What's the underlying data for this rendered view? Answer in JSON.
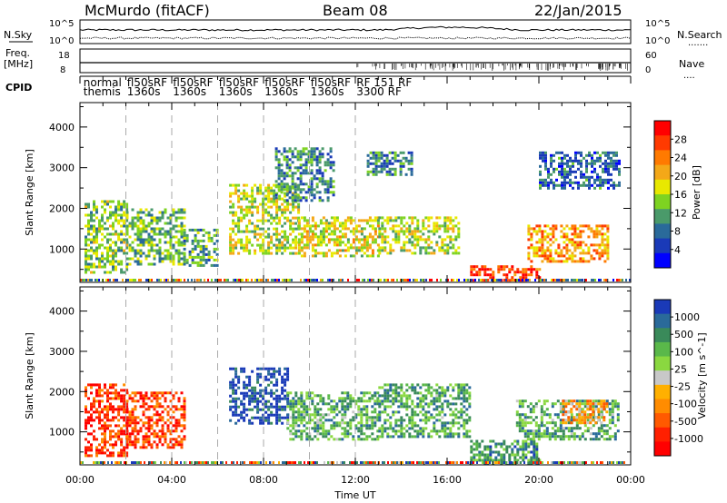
{
  "header": {
    "station": "McMurdo (fitACF)",
    "beam": "Beam 08",
    "date": "22/Jan/2015"
  },
  "top_panels": {
    "nsky_label": "N.Sky",
    "nsky_ticks": [
      "10^5",
      "10^0"
    ],
    "nsearch_label": "N.Search",
    "nsearch_ticks": [
      "10^5",
      "10^0"
    ],
    "freq_label": "Freq.",
    "freq_unit": "[MHz]",
    "freq_ticks": [
      "18",
      "8"
    ],
    "nave_label": "Nave",
    "nave_ticks": [
      "60",
      "0"
    ],
    "cpid_label": "CPID",
    "cpid_entries": [
      {
        "text": "normal",
        "row": 0,
        "hour": 0.15
      },
      {
        "text": "themis",
        "row": 1,
        "hour": 0.15
      },
      {
        "text": "fl50sRF",
        "row": 0,
        "hour": 2.05
      },
      {
        "text": "1360s",
        "row": 1,
        "hour": 2.05
      },
      {
        "text": "fl50sRF",
        "row": 0,
        "hour": 4.05
      },
      {
        "text": "1360s",
        "row": 1,
        "hour": 4.05
      },
      {
        "text": "fl50sRF",
        "row": 0,
        "hour": 6.05
      },
      {
        "text": "1360s",
        "row": 1,
        "hour": 6.05
      },
      {
        "text": "fl50sRF",
        "row": 0,
        "hour": 8.05
      },
      {
        "text": "1360s",
        "row": 1,
        "hour": 8.05
      },
      {
        "text": "fl50sRF",
        "row": 0,
        "hour": 10.05
      },
      {
        "text": "1360s",
        "row": 1,
        "hour": 10.05
      },
      {
        "text": "RF 151 RF",
        "row": 0,
        "hour": 12.05
      },
      {
        "text": "3300 RF",
        "row": 1,
        "hour": 12.05
      }
    ]
  },
  "chart_data": [
    {
      "type": "heatmap",
      "name": "power",
      "ylabel": "Slant Range [km]",
      "xlabel": "Time UT",
      "x_range_hours": [
        0,
        24
      ],
      "ylim": [
        180,
        4600
      ],
      "yticks": [
        1000,
        2000,
        3000,
        4000
      ],
      "xticks": [
        "00:00",
        "04:00",
        "08:00",
        "12:00",
        "16:00",
        "20:00",
        "00:00"
      ],
      "colorbar": {
        "label": "Power [dB]",
        "ticks": [
          "28",
          "24",
          "20",
          "16",
          "12",
          "8",
          "4"
        ],
        "colors": [
          "#ff0000",
          "#ff3a00",
          "#ff7a00",
          "#f4a818",
          "#e8e800",
          "#7ed321",
          "#4a9a6a",
          "#2a6a9a",
          "#1a3ab8",
          "#0000ff"
        ]
      },
      "echo_regions": [
        {
          "t0": 0.2,
          "t1": 2.0,
          "r0": 400,
          "r1": 2200,
          "level": 0.45
        },
        {
          "t0": 2.0,
          "t1": 4.5,
          "r0": 600,
          "r1": 2000,
          "level": 0.4
        },
        {
          "t0": 4.5,
          "t1": 6.0,
          "r0": 600,
          "r1": 1500,
          "level": 0.35
        },
        {
          "t0": 6.5,
          "t1": 9.5,
          "r0": 900,
          "r1": 2600,
          "level": 0.5
        },
        {
          "t0": 8.5,
          "t1": 11.0,
          "r0": 2200,
          "r1": 3500,
          "level": 0.3
        },
        {
          "t0": 9.5,
          "t1": 13.0,
          "r0": 800,
          "r1": 1800,
          "level": 0.55
        },
        {
          "t0": 13.0,
          "t1": 16.5,
          "r0": 900,
          "r1": 1800,
          "level": 0.5
        },
        {
          "t0": 12.5,
          "t1": 14.5,
          "r0": 2800,
          "r1": 3400,
          "level": 0.3
        },
        {
          "t0": 17.0,
          "t1": 20.0,
          "r0": 250,
          "r1": 600,
          "level": 0.85
        },
        {
          "t0": 19.5,
          "t1": 23.0,
          "r0": 700,
          "r1": 1600,
          "level": 0.7
        },
        {
          "t0": 20.0,
          "t1": 23.5,
          "r0": 2500,
          "r1": 3400,
          "level": 0.25
        }
      ]
    },
    {
      "type": "heatmap",
      "name": "velocity",
      "ylabel": "Slant Range [km]",
      "xlabel": "Time UT",
      "x_range_hours": [
        0,
        24
      ],
      "ylim": [
        180,
        4600
      ],
      "yticks": [
        1000,
        2000,
        3000,
        4000
      ],
      "xticks": [
        "00:00",
        "04:00",
        "08:00",
        "12:00",
        "16:00",
        "20:00",
        "00:00"
      ],
      "colorbar": {
        "label": "Velocity [m s^-1]",
        "ticks": [
          "1000",
          "500",
          "100",
          "25",
          "-25",
          "-100",
          "-500",
          "-1000"
        ],
        "colors": [
          "#1a3ab8",
          "#2a6a9a",
          "#3a8a5a",
          "#5ab84a",
          "#8ad840",
          "#c8c8c8",
          "#ffb000",
          "#ff8c00",
          "#ff5a00",
          "#ff2000",
          "#ff0000"
        ]
      },
      "echo_regions": [
        {
          "t0": 0.2,
          "t1": 2.0,
          "r0": 400,
          "r1": 2200,
          "level": 0.15
        },
        {
          "t0": 2.0,
          "t1": 4.5,
          "r0": 600,
          "r1": 2000,
          "level": 0.18
        },
        {
          "t0": 6.5,
          "t1": 9.0,
          "r0": 1200,
          "r1": 2600,
          "level": 0.95
        },
        {
          "t0": 9.0,
          "t1": 13.0,
          "r0": 800,
          "r1": 2000,
          "level": 0.7
        },
        {
          "t0": 13.0,
          "t1": 17.0,
          "r0": 900,
          "r1": 2200,
          "level": 0.72
        },
        {
          "t0": 17.0,
          "t1": 20.0,
          "r0": 250,
          "r1": 800,
          "level": 0.75
        },
        {
          "t0": 19.0,
          "t1": 23.5,
          "r0": 800,
          "r1": 1800,
          "level": 0.7
        },
        {
          "t0": 21.0,
          "t1": 23.0,
          "r0": 1200,
          "r1": 1800,
          "level": 0.35
        }
      ]
    }
  ]
}
